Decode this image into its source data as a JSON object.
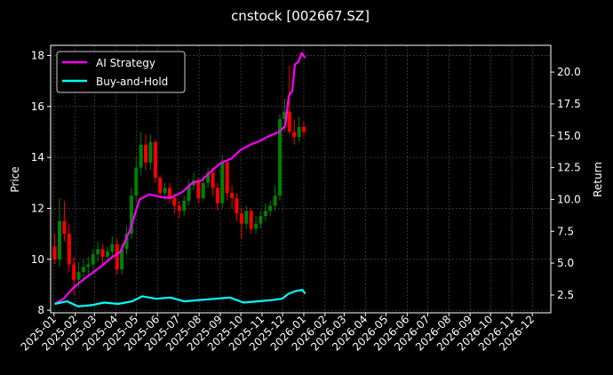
{
  "chart_data": {
    "type": "line",
    "title": "cnstock [002667.SZ]",
    "ylabel_left": "Price",
    "ylabel_right": "Return",
    "ylim_left": [
      7.9,
      18.4
    ],
    "ylim_right": [
      1.1,
      22.1
    ],
    "left_ticks": [
      "8",
      "10",
      "12",
      "14",
      "16",
      "18"
    ],
    "right_ticks": [
      "2.5",
      "5.0",
      "7.5",
      "10.0",
      "12.5",
      "15.0",
      "17.5",
      "20.0"
    ],
    "x_ticks": [
      "2025-01",
      "2025-02",
      "2025-03",
      "2025-04",
      "2025-05",
      "2025-06",
      "2025-07",
      "2025-08",
      "2025-09",
      "2025-10",
      "2025-11",
      "2025-12",
      "2026-01",
      "2026-02",
      "2026-03",
      "2026-04",
      "2026-05",
      "2026-06",
      "2026-07",
      "2026-08",
      "2026-09",
      "2026-10",
      "2026-11",
      "2026-12"
    ],
    "xlim": [
      "2024-12-27",
      "2026-12-28"
    ],
    "grid": true,
    "legend_position": "top-left",
    "series": [
      {
        "name": "AI Strategy",
        "axis": "right",
        "color": "#ff00ff",
        "x": [
          "2025-01-02",
          "2025-01-15",
          "2025-01-28",
          "2025-02-10",
          "2025-02-25",
          "2025-03-12",
          "2025-03-25",
          "2025-04-08",
          "2025-04-22",
          "2025-05-06",
          "2025-05-20",
          "2025-06-05",
          "2025-06-20",
          "2025-07-08",
          "2025-07-22",
          "2025-08-05",
          "2025-08-20",
          "2025-09-03",
          "2025-09-17",
          "2025-10-01",
          "2025-10-15",
          "2025-10-29",
          "2025-11-12",
          "2025-11-26",
          "2025-12-05",
          "2025-12-10",
          "2025-12-15",
          "2025-12-19",
          "2025-12-24",
          "2025-12-29",
          "2026-01-03"
        ],
        "values": [
          1.8,
          2.2,
          3.0,
          3.6,
          4.2,
          4.8,
          5.4,
          5.9,
          7.6,
          10.0,
          10.4,
          10.2,
          10.1,
          10.6,
          11.3,
          11.5,
          12.3,
          12.9,
          13.2,
          13.9,
          14.3,
          14.6,
          15.0,
          15.3,
          15.8,
          18.1,
          18.5,
          20.6,
          20.8,
          21.5,
          21.1
        ]
      },
      {
        "name": "Buy-and-Hold",
        "axis": "right",
        "color": "#00ffff",
        "x": [
          "2025-01-02",
          "2025-01-20",
          "2025-02-05",
          "2025-02-25",
          "2025-03-15",
          "2025-04-05",
          "2025-04-25",
          "2025-05-10",
          "2025-05-30",
          "2025-06-20",
          "2025-07-10",
          "2025-08-01",
          "2025-08-25",
          "2025-09-15",
          "2025-10-05",
          "2025-10-25",
          "2025-11-15",
          "2025-11-30",
          "2025-12-10",
          "2025-12-20",
          "2025-12-30",
          "2026-01-03"
        ],
        "values": [
          1.8,
          2.0,
          1.6,
          1.7,
          1.9,
          1.8,
          2.0,
          2.4,
          2.2,
          2.3,
          2.0,
          2.1,
          2.2,
          2.3,
          1.9,
          2.0,
          2.1,
          2.2,
          2.6,
          2.8,
          2.9,
          2.6
        ]
      }
    ],
    "candles": {
      "axis": "left",
      "up_color": "#008000",
      "down_color": "#ff0000",
      "x": [
        "2025-01-02",
        "2025-01-09",
        "2025-01-16",
        "2025-01-23",
        "2025-01-30",
        "2025-02-06",
        "2025-02-13",
        "2025-02-20",
        "2025-02-27",
        "2025-03-06",
        "2025-03-13",
        "2025-03-20",
        "2025-03-27",
        "2025-04-03",
        "2025-04-10",
        "2025-04-17",
        "2025-04-24",
        "2025-05-01",
        "2025-05-08",
        "2025-05-15",
        "2025-05-22",
        "2025-05-29",
        "2025-06-05",
        "2025-06-12",
        "2025-06-19",
        "2025-06-26",
        "2025-07-03",
        "2025-07-10",
        "2025-07-17",
        "2025-07-24",
        "2025-07-31",
        "2025-08-07",
        "2025-08-14",
        "2025-08-21",
        "2025-08-28",
        "2025-09-04",
        "2025-09-11",
        "2025-09-18",
        "2025-09-25",
        "2025-10-02",
        "2025-10-09",
        "2025-10-16",
        "2025-10-23",
        "2025-10-30",
        "2025-11-06",
        "2025-11-13",
        "2025-11-20",
        "2025-11-27",
        "2025-12-04",
        "2025-12-11",
        "2025-12-18",
        "2025-12-25",
        "2026-01-01"
      ],
      "open": [
        10.5,
        10.0,
        11.5,
        11.0,
        9.8,
        9.2,
        9.5,
        9.7,
        9.8,
        10.2,
        10.4,
        10.1,
        10.3,
        10.6,
        9.6,
        10.4,
        11.0,
        12.5,
        13.6,
        14.5,
        13.8,
        14.6,
        13.2,
        12.6,
        12.8,
        12.4,
        12.1,
        11.9,
        12.3,
        12.9,
        13.1,
        12.4,
        13.0,
        13.4,
        12.8,
        12.2,
        13.8,
        12.6,
        12.4,
        11.8,
        11.4,
        11.9,
        11.2,
        11.4,
        11.7,
        11.9,
        12.1,
        12.5,
        15.5,
        15.8,
        15.0,
        14.8,
        15.2
      ],
      "close": [
        10.0,
        11.5,
        11.0,
        9.8,
        9.2,
        9.5,
        9.7,
        9.8,
        10.2,
        10.4,
        10.1,
        10.3,
        10.6,
        9.6,
        10.4,
        11.0,
        12.5,
        13.6,
        14.5,
        13.8,
        14.6,
        13.2,
        12.6,
        12.8,
        12.4,
        12.1,
        11.9,
        12.3,
        12.9,
        13.1,
        12.4,
        13.0,
        13.4,
        12.8,
        12.2,
        13.8,
        12.6,
        12.4,
        11.8,
        11.4,
        11.9,
        11.2,
        11.4,
        11.7,
        11.9,
        12.1,
        12.5,
        15.5,
        15.8,
        15.0,
        14.8,
        15.2,
        15.0
      ],
      "high": [
        11.0,
        12.4,
        12.3,
        11.4,
        10.1,
        9.9,
        10.0,
        10.1,
        10.4,
        10.7,
        10.6,
        10.5,
        10.9,
        10.8,
        10.6,
        11.3,
        12.8,
        14.0,
        15.0,
        14.9,
        14.9,
        14.7,
        13.3,
        13.0,
        13.0,
        12.6,
        12.3,
        12.5,
        13.1,
        13.4,
        13.2,
        13.3,
        13.6,
        13.6,
        13.0,
        14.1,
        13.9,
        12.9,
        12.6,
        12.0,
        12.1,
        12.0,
        11.7,
        11.9,
        12.2,
        12.3,
        12.9,
        15.7,
        16.3,
        17.6,
        15.5,
        15.6,
        15.4
      ],
      "low": [
        9.8,
        9.7,
        10.7,
        9.5,
        8.6,
        8.9,
        9.1,
        9.4,
        9.6,
        9.9,
        9.8,
        9.9,
        10.1,
        9.4,
        9.4,
        10.2,
        10.8,
        12.2,
        13.3,
        13.5,
        13.5,
        13.0,
        12.4,
        12.3,
        12.2,
        11.8,
        11.6,
        11.7,
        12.1,
        12.7,
        12.2,
        12.3,
        12.8,
        12.5,
        11.9,
        12.0,
        12.3,
        12.0,
        11.5,
        10.8,
        11.2,
        11.0,
        11.0,
        11.2,
        11.5,
        11.7,
        11.9,
        12.3,
        15.0,
        14.9,
        14.5,
        14.6,
        14.8
      ]
    }
  }
}
